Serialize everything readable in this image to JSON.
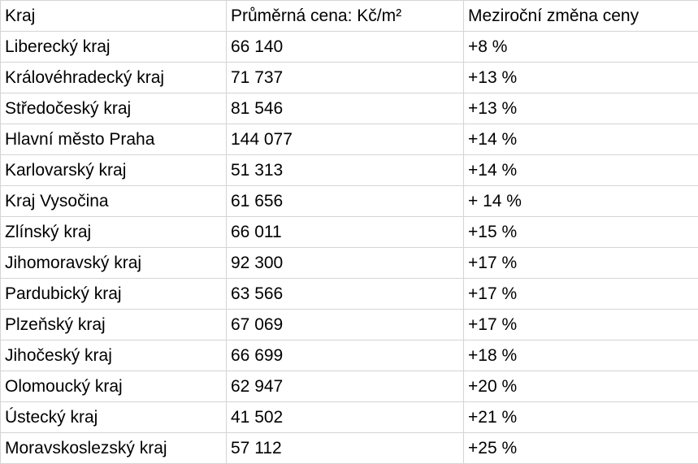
{
  "table": {
    "header": [
      "Kraj",
      "Průměrná cena: Kč/m²",
      "Meziroční změna ceny"
    ],
    "rows": [
      [
        "Liberecký kraj",
        "66 140",
        "+8 %"
      ],
      [
        "Královéhradecký kraj",
        "71 737",
        "+13 %"
      ],
      [
        "Středočeský kraj",
        "81 546",
        "+13 %"
      ],
      [
        "Hlavní město Praha",
        "144 077",
        "+14 %"
      ],
      [
        "Karlovarský kraj",
        "51 313",
        "+14 %"
      ],
      [
        "Kraj Vysočina",
        "61 656",
        "+ 14 %"
      ],
      [
        "Zlínský kraj",
        "66 011",
        "+15 %"
      ],
      [
        "Jihomoravský kraj",
        "92 300",
        "+17 %"
      ],
      [
        "Pardubický kraj",
        "63 566",
        "+17 %"
      ],
      [
        "Plzeňský kraj",
        "67 069",
        "+17 %"
      ],
      [
        "Jihočeský kraj",
        "66 699",
        "+18 %"
      ],
      [
        "Olomoucký kraj",
        "62 947",
        "+20 %"
      ],
      [
        "Ústecký kraj",
        "41 502",
        "+21 %"
      ],
      [
        "Moravskoslezský kraj",
        "57 112",
        "+25 %"
      ]
    ]
  }
}
